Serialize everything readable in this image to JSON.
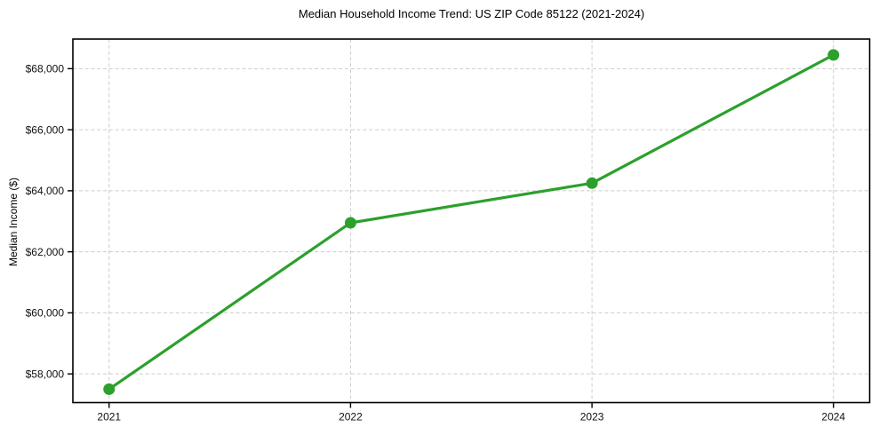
{
  "figure": {
    "background": "#ffffff"
  },
  "chart_data": {
    "type": "line",
    "title": "Median Household Income Trend: US ZIP Code 85122 (2021-2024)",
    "xlabel": "",
    "ylabel": "Median Income ($)",
    "x": [
      2021,
      2022,
      2023,
      2024
    ],
    "xtick_labels": [
      "2021",
      "2022",
      "2023",
      "2024"
    ],
    "series": [
      {
        "color": "#2ca02c",
        "values": [
          57500,
          62950,
          64250,
          68450
        ]
      }
    ],
    "yticks": [
      58000,
      60000,
      62000,
      64000,
      66000,
      68000
    ],
    "ytick_labels": [
      "$58,000",
      "$60,000",
      "$62,000",
      "$64,000",
      "$66,000",
      "$68,000"
    ],
    "xlim": [
      2020.85,
      2024.15
    ],
    "ylim": [
      57060,
      68970
    ],
    "grid": true,
    "grid_color": "#cccccc",
    "grid_style": "dashed",
    "spine_color": "#000000",
    "legend_position": "none",
    "marker": "circle"
  }
}
